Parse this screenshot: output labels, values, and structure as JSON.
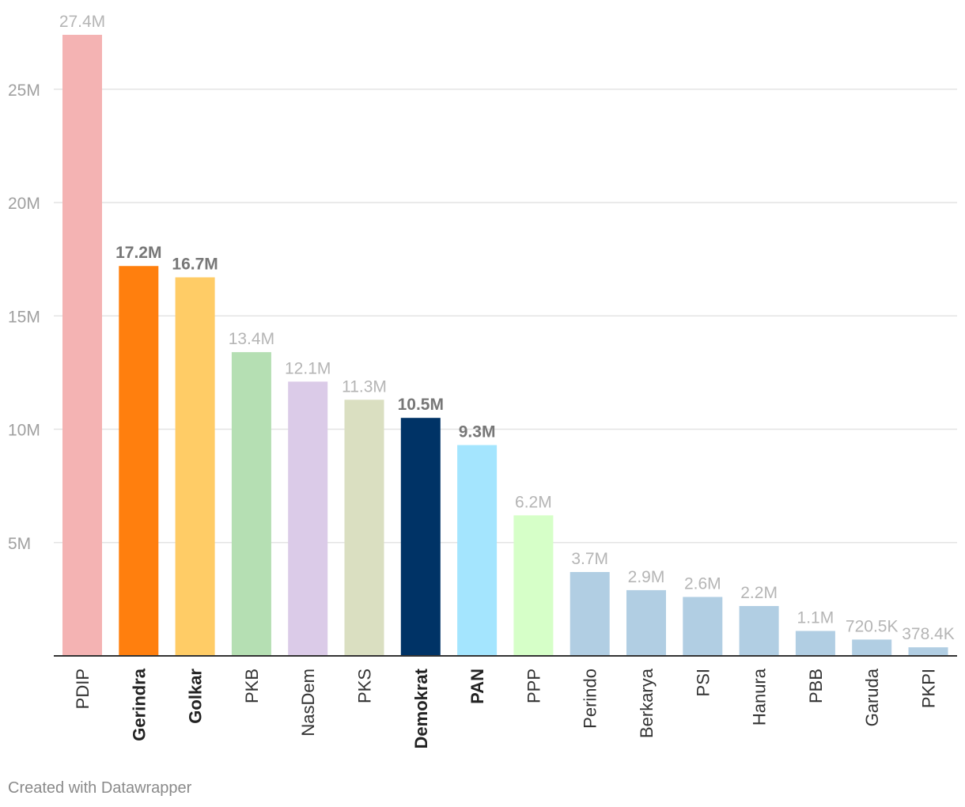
{
  "chart_data": {
    "type": "bar",
    "categories": [
      "PDIP",
      "Gerindra",
      "Golkar",
      "PKB",
      "NasDem",
      "PKS",
      "Demokrat",
      "PAN",
      "PPP",
      "Perindo",
      "Berkarya",
      "PSI",
      "Hanura",
      "PBB",
      "Garuda",
      "PKPI"
    ],
    "values": [
      27400000,
      17200000,
      16700000,
      13400000,
      12100000,
      11300000,
      10500000,
      9300000,
      6200000,
      3700000,
      2900000,
      2600000,
      2200000,
      1100000,
      720500,
      378400
    ],
    "value_labels": [
      "27.4M",
      "17.2M",
      "16.7M",
      "13.4M",
      "12.1M",
      "11.3M",
      "10.5M",
      "9.3M",
      "6.2M",
      "3.7M",
      "2.9M",
      "2.6M",
      "2.2M",
      "1.1M",
      "720.5K",
      "378.4K"
    ],
    "bold": [
      false,
      true,
      true,
      false,
      false,
      false,
      true,
      true,
      false,
      false,
      false,
      false,
      false,
      false,
      false,
      false
    ],
    "colors": [
      "#f4b3b3",
      "#ff7f0e",
      "#ffcc66",
      "#b5dfb3",
      "#dbcbe8",
      "#dadfc1",
      "#003366",
      "#a4e5fe",
      "#d6ffc8",
      "#b1cee3",
      "#b1cee3",
      "#b1cee3",
      "#b1cee3",
      "#b1cee3",
      "#b1cee3",
      "#b1cee3"
    ],
    "yticks": [
      5000000,
      10000000,
      15000000,
      20000000,
      25000000
    ],
    "ytick_labels": [
      "5M",
      "10M",
      "15M",
      "20M",
      "25M"
    ],
    "ylim": [
      0,
      27400000
    ],
    "grid": true,
    "title": "",
    "xlabel": "",
    "ylabel": ""
  },
  "footer": {
    "credit": "Created with Datawrapper"
  }
}
